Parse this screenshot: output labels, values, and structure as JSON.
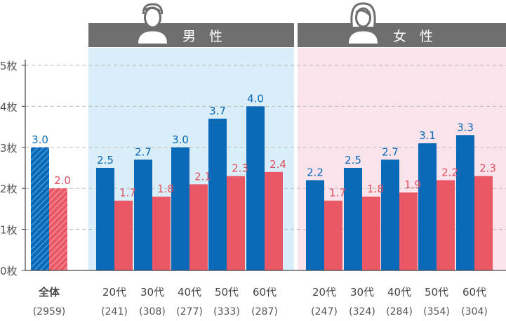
{
  "colors": {
    "male_bg": "#d9eef9",
    "female_bg": "#fbe3ec",
    "header_bg": "#6e6e6e",
    "bar_primary": "#0a6ab7",
    "bar_secondary": "#ea5866",
    "label_primary": "#0a6ab7",
    "label_secondary": "#e1505e",
    "axis_text": "#555555",
    "grid": "#bbbbbb"
  },
  "chart_data": {
    "type": "bar",
    "ylim": [
      0,
      5
    ],
    "yticks": [
      "0枚",
      "1枚",
      "2枚",
      "3枚",
      "4枚",
      "5枚"
    ],
    "ytick_values": [
      0,
      1,
      2,
      3,
      4,
      5
    ],
    "groups": [
      {
        "key": "total",
        "header": "",
        "icon": "",
        "categories": [
          {
            "label": "全体",
            "sub": "(2959)",
            "values": [
              3.0,
              2.0
            ],
            "hatched": true
          }
        ]
      },
      {
        "key": "male",
        "header": "男　性",
        "icon": "male-person-icon",
        "categories": [
          {
            "label": "20代",
            "sub": "(241)",
            "values": [
              2.5,
              1.7
            ]
          },
          {
            "label": "30代",
            "sub": "(308)",
            "values": [
              2.7,
              1.8
            ]
          },
          {
            "label": "40代",
            "sub": "(277)",
            "values": [
              3.0,
              2.1
            ]
          },
          {
            "label": "50代",
            "sub": "(333)",
            "values": [
              3.7,
              2.3
            ]
          },
          {
            "label": "60代",
            "sub": "(287)",
            "values": [
              4.0,
              2.4
            ]
          }
        ]
      },
      {
        "key": "female",
        "header": "女　性",
        "icon": "female-person-icon",
        "categories": [
          {
            "label": "20代",
            "sub": "(247)",
            "values": [
              2.2,
              1.7
            ]
          },
          {
            "label": "30代",
            "sub": "(324)",
            "values": [
              2.5,
              1.8
            ]
          },
          {
            "label": "40代",
            "sub": "(284)",
            "values": [
              2.7,
              1.9
            ]
          },
          {
            "label": "50代",
            "sub": "(354)",
            "values": [
              3.1,
              2.2
            ]
          },
          {
            "label": "60代",
            "sub": "(304)",
            "values": [
              3.3,
              2.3
            ]
          }
        ]
      }
    ]
  }
}
